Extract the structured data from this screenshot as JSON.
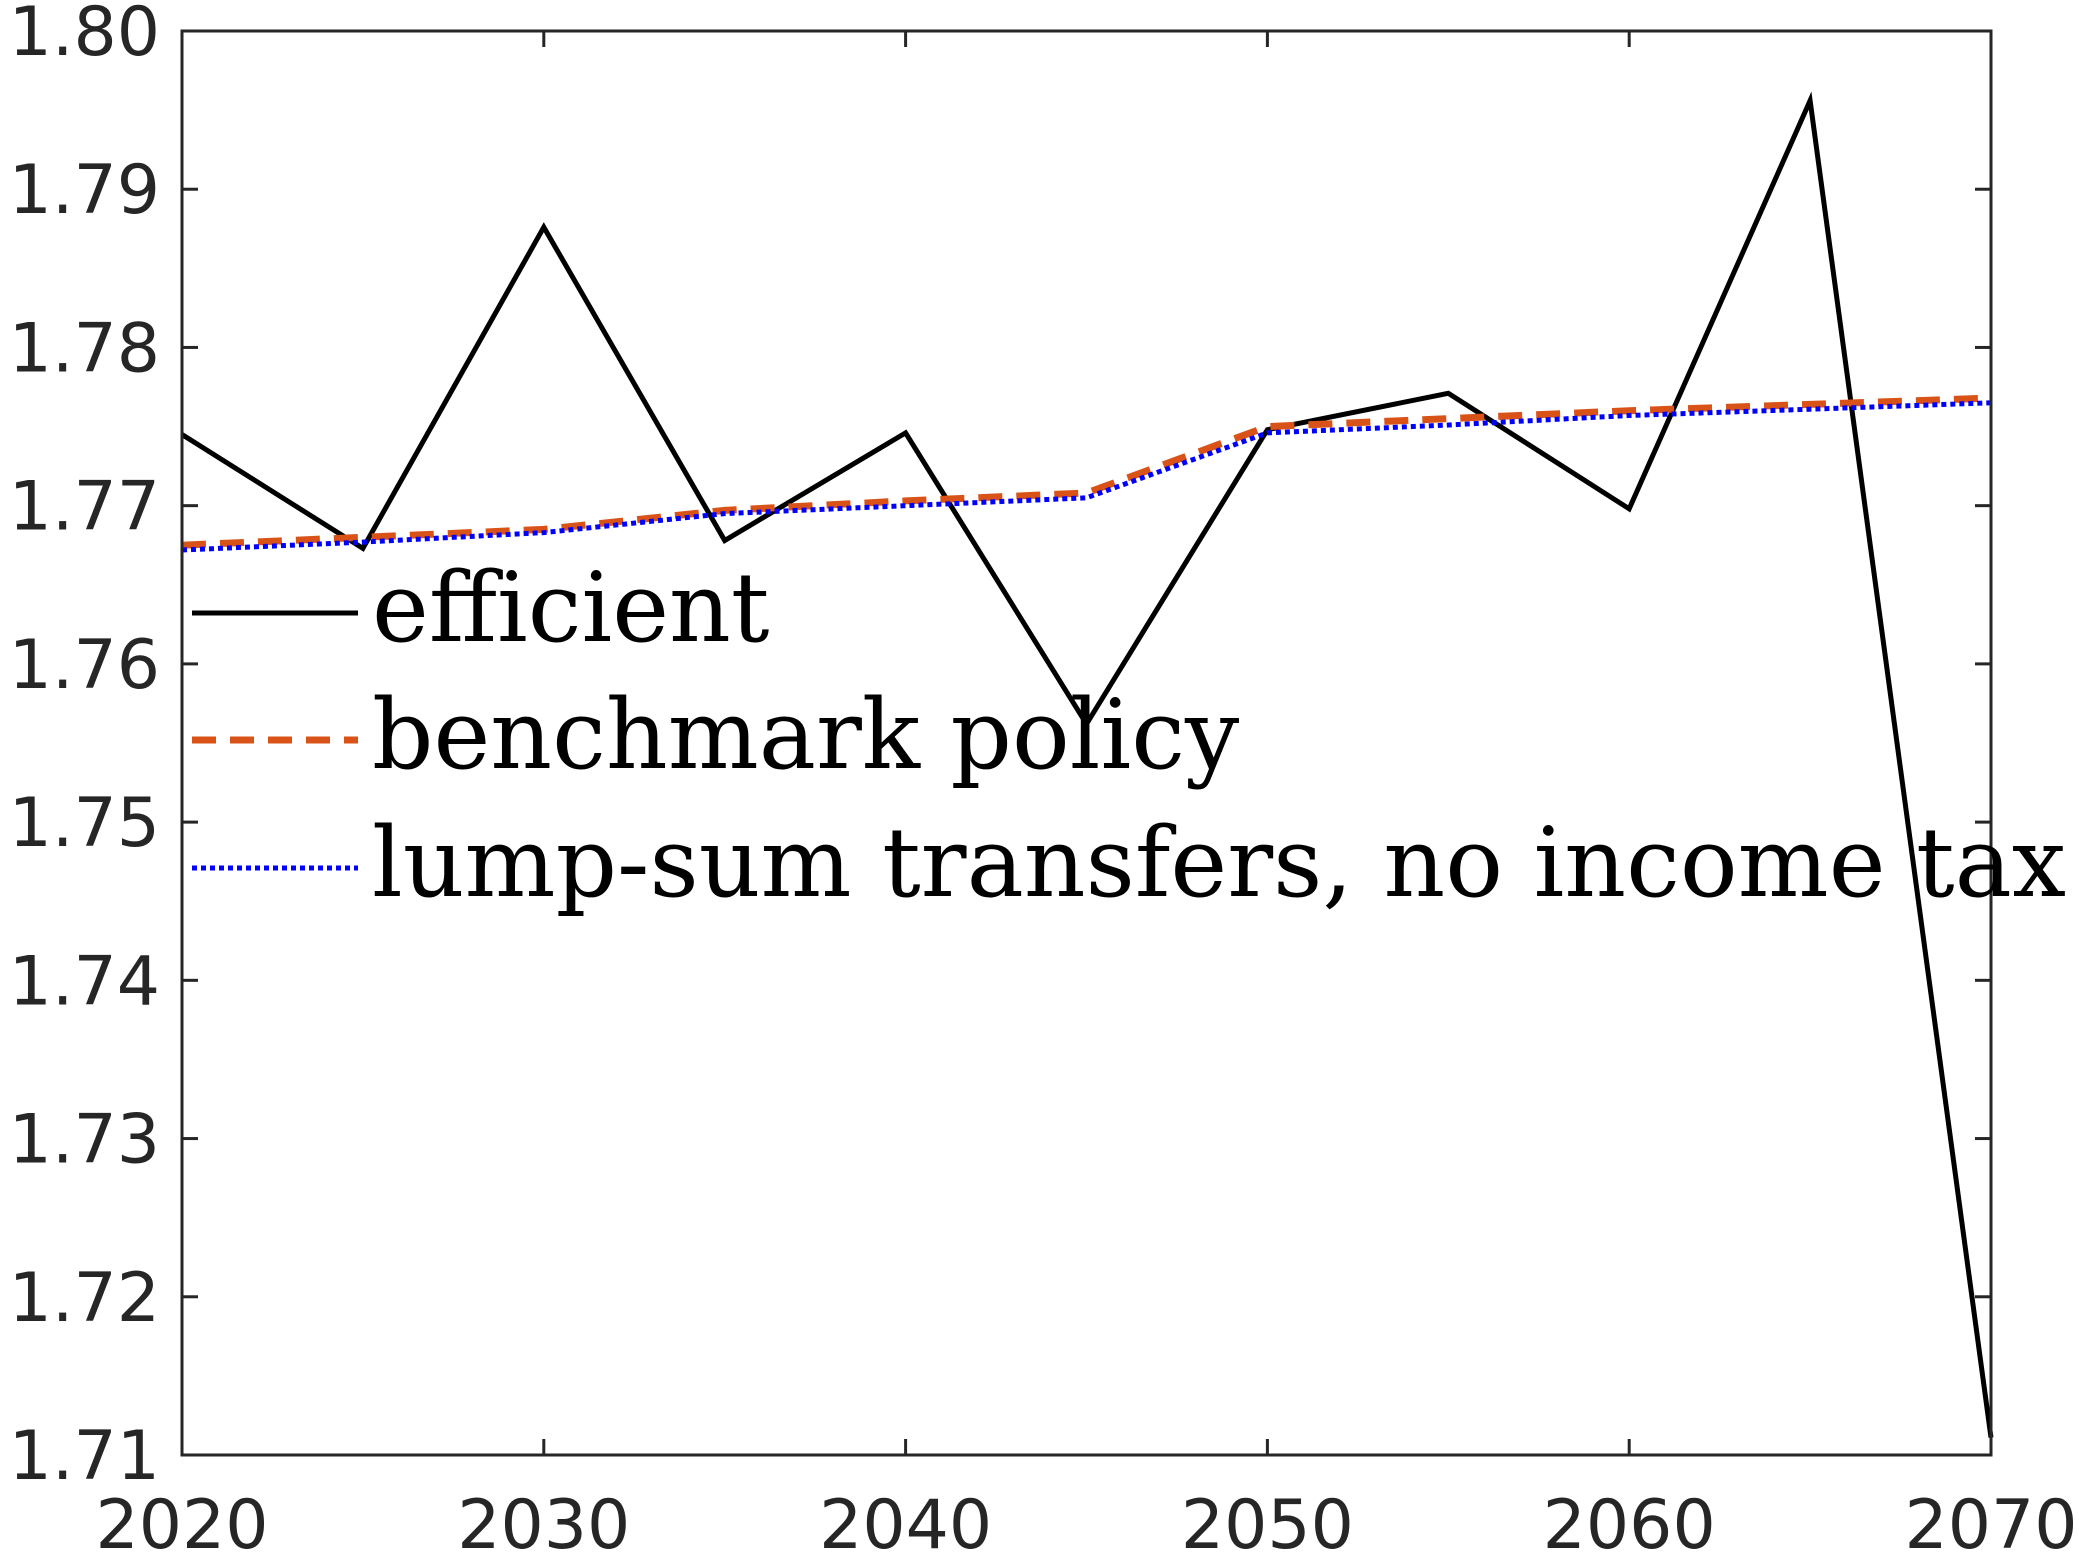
{
  "chart_data": {
    "type": "line",
    "title": "",
    "xlabel": "",
    "ylabel": "",
    "xlim": [
      2020,
      2070
    ],
    "ylim": [
      1.71,
      1.8
    ],
    "grid": false,
    "box": true,
    "legend_placement": "center-left",
    "x_ticks": [
      2020,
      2030,
      2040,
      2050,
      2060,
      2070
    ],
    "x_tick_labels": [
      "2020",
      "2030",
      "2040",
      "2050",
      "2060",
      "2070"
    ],
    "y_ticks": [
      1.71,
      1.72,
      1.73,
      1.74,
      1.75,
      1.76,
      1.77,
      1.78,
      1.79,
      1.8
    ],
    "y_tick_labels": [
      "1.71",
      "1.72",
      "1.73",
      "1.74",
      "1.75",
      "1.76",
      "1.77",
      "1.78",
      "1.79",
      "1.80"
    ],
    "x": [
      2020,
      2025,
      2030,
      2035,
      2040,
      2045,
      2050,
      2055,
      2060,
      2065,
      2070
    ],
    "series": [
      {
        "name": "efficient",
        "color": "#000000",
        "line_style": "solid",
        "values": [
          1.7745,
          1.7673,
          1.7876,
          1.7678,
          1.7746,
          1.7562,
          1.7748,
          1.7771,
          1.7698,
          1.7956,
          1.7111
        ]
      },
      {
        "name": "benchmark policy",
        "color": "#D95319",
        "line_style": "dashed",
        "values": [
          1.7675,
          1.768,
          1.7685,
          1.7697,
          1.7703,
          1.7708,
          1.775,
          1.7755,
          1.776,
          1.7764,
          1.7768
        ]
      },
      {
        "name": "lump-sum transfers, no income tax",
        "color": "#0000FF",
        "line_style": "dotted",
        "values": [
          1.7672,
          1.7677,
          1.7683,
          1.7695,
          1.77,
          1.7705,
          1.7746,
          1.7751,
          1.7757,
          1.7761,
          1.7765
        ]
      }
    ]
  }
}
